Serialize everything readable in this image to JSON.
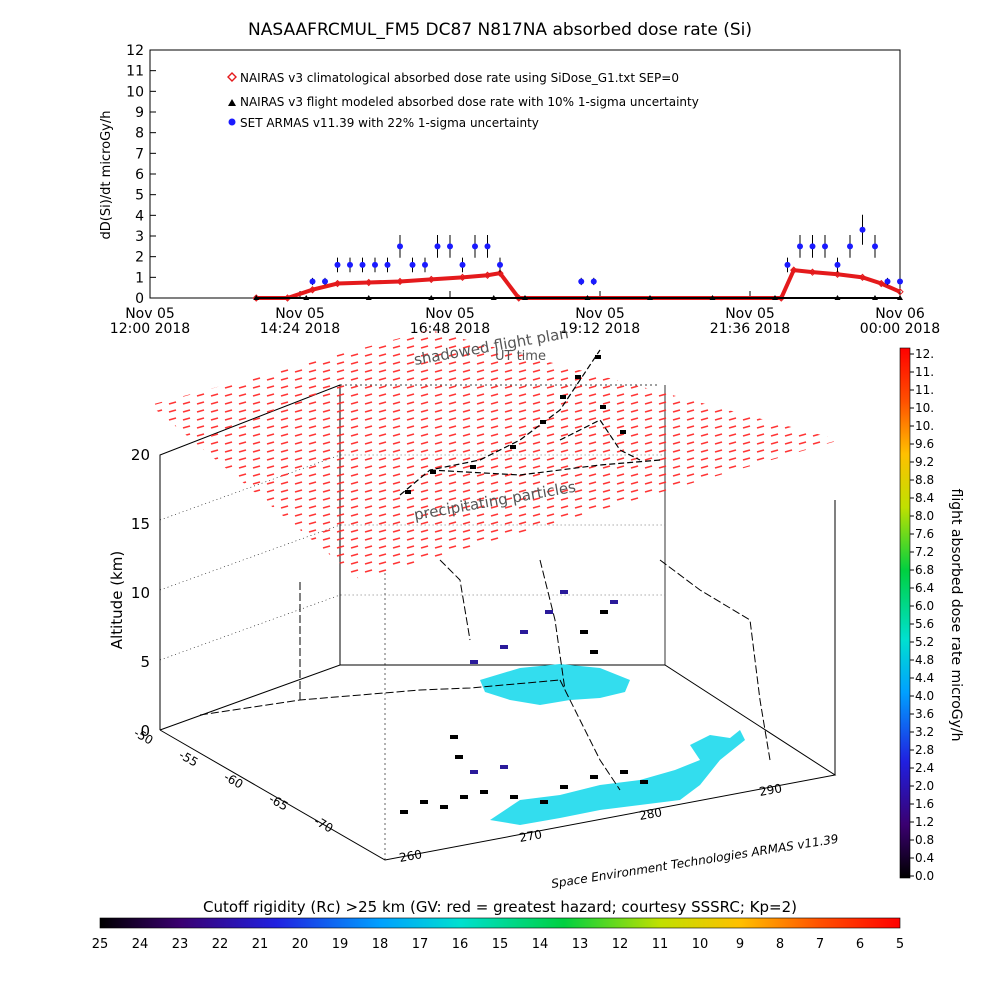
{
  "title": "NASAAFRCMUL_FM5 DC87 N817NA absorbed dose rate (Si)",
  "top_chart": {
    "ylabel": "dD(Si)/dt microGy/h",
    "xlabel": "UT time",
    "ylim": [
      0,
      12
    ],
    "y_ticks": [
      "0",
      "1",
      "2",
      "3",
      "4",
      "5",
      "6",
      "7",
      "8",
      "9",
      "10",
      "11",
      "12"
    ],
    "x_ticks": [
      {
        "line1": "Nov 05",
        "line2": "12:00 2018"
      },
      {
        "line1": "Nov 05",
        "line2": "14:24 2018"
      },
      {
        "line1": "Nov 05",
        "line2": "16:48 2018"
      },
      {
        "line1": "Nov 05",
        "line2": "19:12 2018"
      },
      {
        "line1": "Nov 05",
        "line2": "21:36 2018"
      },
      {
        "line1": "Nov 06",
        "line2": "00:00 2018"
      }
    ],
    "legend": [
      {
        "label": "NAIRAS v3 climatological absorbed dose rate using SiDose_G1.txt SEP=0",
        "color": "#e41a1c",
        "marker": "diamond"
      },
      {
        "label": "NAIRAS v3 flight modeled absorbed dose rate with 10% 1-sigma uncertainty",
        "color": "#000000",
        "marker": "triangle"
      },
      {
        "label": "SET ARMAS v11.39 with 22% 1-sigma uncertainty",
        "color": "#1a1aff",
        "marker": "circle"
      }
    ]
  },
  "chart_data": [
    {
      "type": "scatter",
      "title": "NASAAFRCMUL_FM5 DC87 N817NA absorbed dose rate (Si)",
      "xlabel": "UT time",
      "ylabel": "dD(Si)/dt microGy/h",
      "x_unit": "hours since Nov 05 12:00 2018",
      "xlim": [
        0,
        12
      ],
      "ylim": [
        0,
        12
      ],
      "legend_position": "top-left",
      "series": [
        {
          "name": "NAIRAS v3 climatological absorbed dose rate using SiDose_G1.txt SEP=0",
          "x": [
            1.7,
            2.2,
            2.6,
            3.0,
            3.5,
            4.0,
            4.5,
            5.0,
            5.4,
            5.6,
            5.9,
            10.1,
            10.3,
            10.6,
            11.0,
            11.4,
            11.7,
            12.0
          ],
          "y": [
            0,
            0,
            0.4,
            0.7,
            0.75,
            0.8,
            0.9,
            1.0,
            1.1,
            1.2,
            0,
            0,
            1.35,
            1.25,
            1.15,
            1.0,
            0.7,
            0.3
          ]
        },
        {
          "name": "NAIRAS v3 flight modeled absorbed dose rate with 10% 1-sigma uncertainty",
          "x": [
            1.7,
            2.5,
            3.5,
            4.5,
            5.5,
            6.0,
            7.0,
            8.0,
            9.0,
            10.0,
            11.0,
            11.6,
            12.0
          ],
          "y": [
            0,
            0,
            0,
            0,
            0,
            0,
            0,
            0,
            0,
            0,
            0,
            0,
            0
          ]
        },
        {
          "name": "SET ARMAS v11.39 with 22% 1-sigma uncertainty",
          "x": [
            2.6,
            2.8,
            3.0,
            3.2,
            3.4,
            3.6,
            3.8,
            4.0,
            4.2,
            4.4,
            4.6,
            4.8,
            5.0,
            5.2,
            5.4,
            5.6,
            6.9,
            7.1,
            10.2,
            10.4,
            10.6,
            10.8,
            11.0,
            11.2,
            11.4,
            11.6,
            11.8,
            12.0
          ],
          "y": [
            0.8,
            0.8,
            1.6,
            1.6,
            1.6,
            1.6,
            1.6,
            2.5,
            1.6,
            1.6,
            2.5,
            2.5,
            1.6,
            2.5,
            2.5,
            1.6,
            0.8,
            0.8,
            1.6,
            2.5,
            2.5,
            2.5,
            1.6,
            2.5,
            3.3,
            2.5,
            0.8,
            0.8
          ]
        }
      ]
    },
    {
      "type": "scatter",
      "title": "",
      "ylabel": "Altitude (km)",
      "zlim": [
        0,
        20
      ],
      "z_ticks": [
        "0",
        "5",
        "10",
        "15",
        "20"
      ],
      "lat_ticks": [
        "-50",
        "-55",
        "-60",
        "-65",
        "-70"
      ],
      "lon_ticks": [
        "260",
        "270",
        "280",
        "290"
      ],
      "annotations": [
        "shadowed flight plan",
        "UT time",
        "precipitating particles",
        "Space Environment Technologies ARMAS v11.39"
      ]
    }
  ],
  "right_colorbar": {
    "label": "flight absorbed dose rate microGy/h",
    "ticks": [
      "12.",
      "11.",
      "11.",
      "10.",
      "10.",
      "9.6",
      "9.2",
      "8.8",
      "8.4",
      "8.0",
      "7.6",
      "7.2",
      "6.8",
      "6.4",
      "6.0",
      "5.6",
      "5.2",
      "4.8",
      "4.4",
      "4.0",
      "3.6",
      "3.2",
      "2.8",
      "2.4",
      "2.0",
      "1.6",
      "1.2",
      "0.8",
      "0.4",
      "0.0"
    ]
  },
  "bottom_colorbar": {
    "label": "Cutoff rigidity (Rc) >25 km (GV: red = greatest hazard; courtesy SSSRC; Kp=2)",
    "ticks": [
      "25",
      "24",
      "23",
      "22",
      "21",
      "20",
      "19",
      "18",
      "17",
      "16",
      "15",
      "14",
      "13",
      "12",
      "11",
      "10",
      "9",
      "8",
      "7",
      "6",
      "5"
    ]
  },
  "colors": {
    "nairas_clim": "#e41a1c",
    "nairas_flight": "#000000",
    "armas": "#1a1aff",
    "ocean": "#33ddee"
  }
}
